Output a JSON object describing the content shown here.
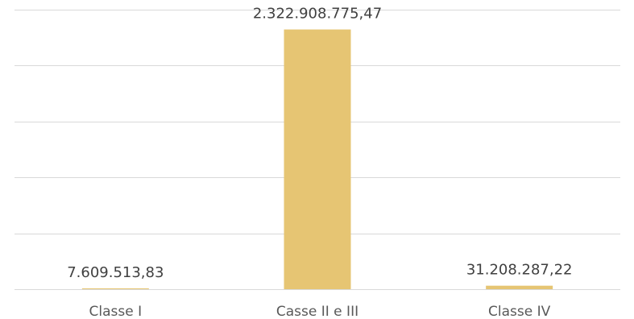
{
  "chart_data": {
    "type": "bar",
    "categories": [
      "Classe I",
      "Casse II e III",
      "Classe IV"
    ],
    "values": [
      7609513.83,
      2322908775.47,
      31208287.22
    ],
    "data_labels": [
      "7.609.513,83",
      "2.322.908.775,47",
      "31.208.287,22"
    ],
    "title": "",
    "xlabel": "",
    "ylabel": "",
    "ylim": [
      0,
      2500000000
    ],
    "grid": true,
    "legend": "none",
    "bar_color": "#e6c573"
  }
}
